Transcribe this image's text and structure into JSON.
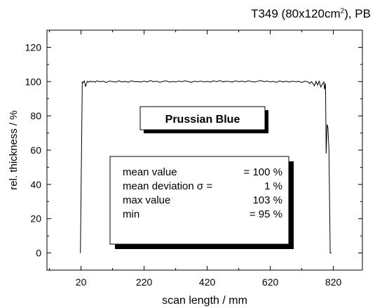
{
  "chart_data": {
    "type": "line",
    "title": {
      "prefix": "T349 (80x120cm",
      "superscript": "2",
      "suffix": "), PB"
    },
    "xlabel": "scan length / mm",
    "ylabel": "rel. thickness / %",
    "xlim": [
      -88,
      912
    ],
    "ylim": [
      -10,
      130
    ],
    "xticks": [
      20,
      220,
      420,
      620,
      820
    ],
    "yticks": [
      0,
      20,
      40,
      60,
      80,
      100,
      120
    ],
    "grid": false,
    "label_box": "Prussian Blue",
    "stats": [
      {
        "label": "mean value",
        "value": "=  100 %"
      },
      {
        "label": "mean deviation σ =",
        "value": "1 %"
      },
      {
        "label": "max value",
        "value": "103 %"
      },
      {
        "label": "min",
        "value": "=   95 %"
      }
    ],
    "series": [
      {
        "x": [
          18,
          24,
          26,
          31,
          34,
          40,
          45,
          50,
          55,
          60,
          65,
          70,
          80,
          90,
          100,
          110,
          120,
          130,
          140,
          150,
          160,
          170,
          180,
          190,
          200,
          210,
          220,
          230,
          240,
          250,
          260,
          270,
          280,
          290,
          300,
          310,
          320,
          330,
          340,
          350,
          360,
          370,
          380,
          390,
          400,
          410,
          420,
          430,
          440,
          450,
          460,
          470,
          480,
          490,
          500,
          510,
          520,
          530,
          540,
          550,
          560,
          570,
          580,
          590,
          600,
          610,
          620,
          630,
          640,
          650,
          660,
          670,
          680,
          690,
          700,
          710,
          720,
          730,
          740,
          745,
          750,
          755,
          760,
          765,
          770,
          775,
          780,
          785,
          790,
          792,
          795,
          797,
          800,
          803,
          806,
          810,
          814
        ],
        "y": [
          0,
          100,
          99.3,
          100.4,
          97,
          100.2,
          99.7,
          100.3,
          99.8,
          100.1,
          99.6,
          100.4,
          99.9,
          100.2,
          99.5,
          100.3,
          100.0,
          99.7,
          100.4,
          99.8,
          100.1,
          99.6,
          100.5,
          99.9,
          100.0,
          99.7,
          100.3,
          99.8,
          100.6,
          99.9,
          100.2,
          99.6,
          100.1,
          100.4,
          99.7,
          100.0,
          99.8,
          100.3,
          99.9,
          100.5,
          100.0,
          99.6,
          100.2,
          99.9,
          100.3,
          99.8,
          100.1,
          99.7,
          100.4,
          99.9,
          100.6,
          99.8,
          100.2,
          100.0,
          99.7,
          100.4,
          99.9,
          100.3,
          99.8,
          100.5,
          100.0,
          99.7,
          100.2,
          100.6,
          99.9,
          100.3,
          99.8,
          100.1,
          99.6,
          100.4,
          99.8,
          100.2,
          99.7,
          100.3,
          99.9,
          100.1,
          99.5,
          100.2,
          99.8,
          98.8,
          100.0,
          99.0,
          97.5,
          100.1,
          98.0,
          100.2,
          96.8,
          98.5,
          99.8,
          95.5,
          99.0,
          58,
          75,
          73,
          60,
          0,
          0
        ]
      }
    ]
  }
}
